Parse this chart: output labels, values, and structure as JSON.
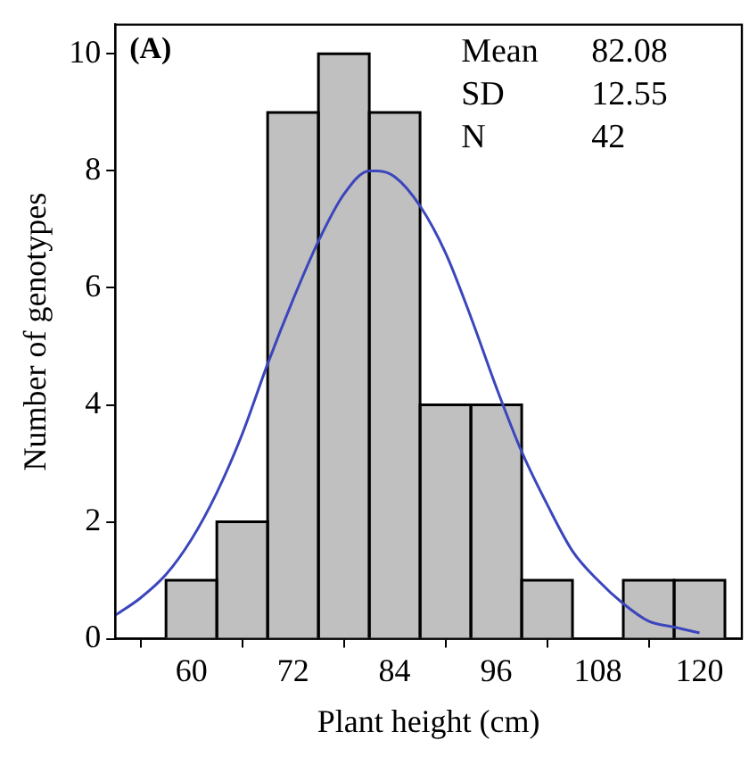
{
  "chart_data": {
    "type": "histogram",
    "xlabel": "Plant height (cm)",
    "ylabel": "Number of genotypes",
    "bins": [
      57,
      63,
      69,
      75,
      81,
      87,
      93,
      99,
      105,
      111,
      117,
      123
    ],
    "values": [
      1,
      2,
      9,
      10,
      9,
      4,
      4,
      1,
      0,
      1,
      1
    ],
    "color": "#c0c0c0",
    "series": [
      {
        "type": "line",
        "color": "#3c46bc",
        "x": [
          51,
          54,
          57,
          60,
          63,
          66,
          69,
          72,
          75,
          78,
          81,
          82,
          84,
          87,
          90,
          93,
          96,
          99,
          102,
          105,
          108,
          111,
          114,
          117,
          120
        ],
        "values": [
          0.4,
          0.7,
          1.1,
          1.7,
          2.5,
          3.5,
          4.7,
          5.8,
          6.8,
          7.6,
          8.0,
          8.0,
          7.9,
          7.4,
          6.6,
          5.5,
          4.3,
          3.2,
          2.3,
          1.5,
          1.0,
          0.6,
          0.3,
          0.2,
          0.1
        ]
      }
    ],
    "marker": "none",
    "line_style": "solid",
    "xlim": [
      51,
      125
    ],
    "xticks": [
      60,
      72,
      84,
      96,
      108,
      120
    ],
    "ylim": [
      0,
      10.5
    ],
    "yticks": [
      0,
      2,
      4,
      6,
      8,
      10
    ],
    "grid": false,
    "legend": false,
    "annotations": [
      "(A)",
      "Mean 82.08",
      "SD 12.55",
      "N 42"
    ]
  }
}
